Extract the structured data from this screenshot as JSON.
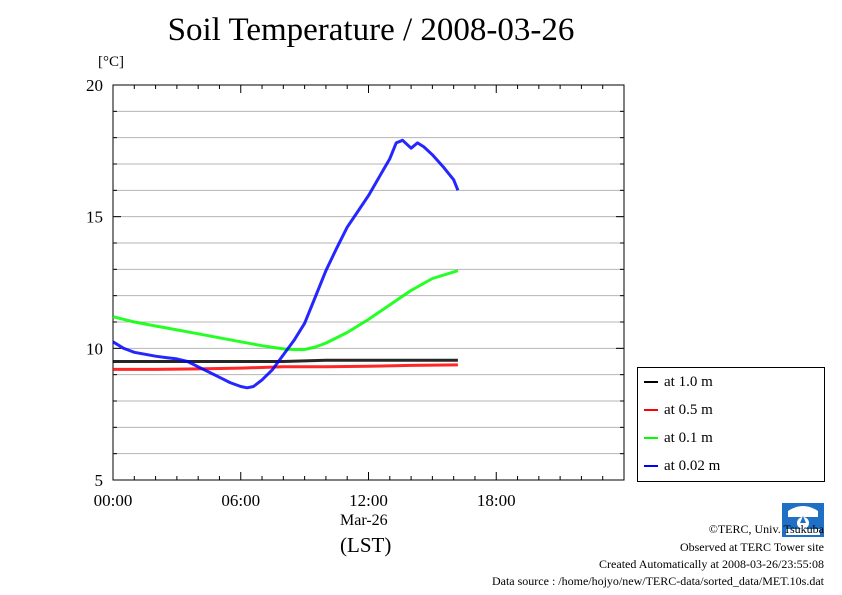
{
  "chart_data": {
    "type": "line",
    "title": "Soil Temperature / 2008-03-26",
    "ylabel": "[°C]",
    "xlabel": "(LST)",
    "date_label": "Mar-26",
    "xlim": [
      0,
      24
    ],
    "ylim": [
      5,
      20
    ],
    "x_ticks": [
      {
        "v": 0,
        "label": "00:00"
      },
      {
        "v": 6,
        "label": "06:00"
      },
      {
        "v": 12,
        "label": "12:00"
      },
      {
        "v": 18,
        "label": "18:00"
      }
    ],
    "y_ticks": [
      {
        "v": 5,
        "label": "5"
      },
      {
        "v": 10,
        "label": "10"
      },
      {
        "v": 15,
        "label": "15"
      },
      {
        "v": 20,
        "label": "20"
      }
    ],
    "grid": true,
    "legend_position": "right",
    "series": [
      {
        "name": "at 1.0 m",
        "color": "#000000",
        "x": [
          0,
          2,
          4,
          6,
          8,
          10,
          12,
          14,
          16.2
        ],
        "y": [
          9.5,
          9.5,
          9.5,
          9.5,
          9.5,
          9.55,
          9.55,
          9.55,
          9.55
        ]
      },
      {
        "name": "at 0.5 m",
        "color": "#ff0000",
        "x": [
          0,
          2,
          4,
          6,
          8,
          10,
          12,
          14,
          16.2
        ],
        "y": [
          9.2,
          9.2,
          9.22,
          9.25,
          9.3,
          9.3,
          9.32,
          9.35,
          9.37
        ]
      },
      {
        "name": "at 0.1 m",
        "color": "#00ff00",
        "x": [
          0,
          1,
          2,
          3,
          4,
          5,
          6,
          7,
          8,
          8.5,
          9,
          9.5,
          10,
          11,
          12,
          13,
          14,
          15,
          16.2
        ],
        "y": [
          11.2,
          11.0,
          10.85,
          10.7,
          10.55,
          10.4,
          10.25,
          10.1,
          9.98,
          9.95,
          9.95,
          10.05,
          10.2,
          10.6,
          11.1,
          11.65,
          12.2,
          12.65,
          12.95
        ]
      },
      {
        "name": "at 0.02 m",
        "color": "#0000ff",
        "x": [
          0,
          0.5,
          1,
          2,
          2.5,
          3,
          3.5,
          4,
          4.5,
          5,
          5.5,
          6,
          6.3,
          6.6,
          7,
          7.5,
          8,
          8.5,
          9,
          9.5,
          10,
          10.5,
          11,
          11.5,
          12,
          12.5,
          13,
          13.3,
          13.6,
          14,
          14.3,
          14.6,
          15,
          15.5,
          16,
          16.2
        ],
        "y": [
          10.25,
          10.0,
          9.85,
          9.7,
          9.65,
          9.6,
          9.5,
          9.3,
          9.1,
          8.9,
          8.7,
          8.55,
          8.5,
          8.55,
          8.8,
          9.2,
          9.75,
          10.3,
          10.95,
          11.95,
          12.95,
          13.8,
          14.6,
          15.2,
          15.8,
          16.5,
          17.2,
          17.8,
          17.9,
          17.6,
          17.8,
          17.65,
          17.35,
          16.9,
          16.4,
          16.0
        ]
      }
    ]
  },
  "footer": {
    "copyright": "©TERC, Univ. Tsukuba",
    "observed": "Observed at TERC Tower site",
    "created": "Created Automatically at 2008-03-26/23:55:08",
    "source": "Data source : /home/hojyo/new/TERC-data/sorted_data/MET.10s.dat",
    "logo_text": "TERC"
  }
}
